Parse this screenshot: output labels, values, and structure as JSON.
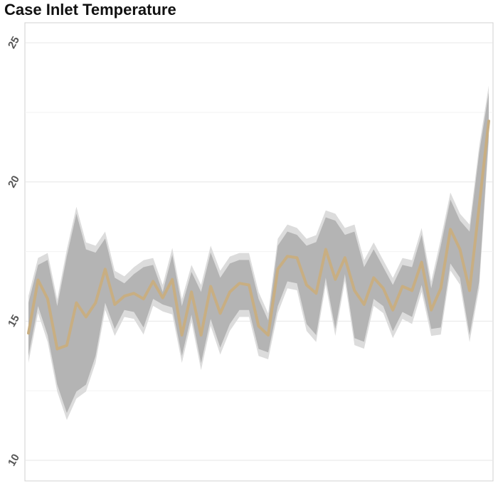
{
  "chart_data": {
    "type": "line",
    "title": "Case Inlet Temperature",
    "ylim": [
      9.26,
      25.72
    ],
    "yticks": [
      10,
      15,
      20,
      25
    ],
    "minor_yticks": [
      12.5,
      17.5,
      22.5
    ],
    "grid": true,
    "line_color": "#c8ae82",
    "bands": [
      {
        "color": "#dcdcdc",
        "upper": [
          15.91,
          17.27,
          17.45,
          15.79,
          17.58,
          19.11,
          17.83,
          17.71,
          18.22,
          16.81,
          16.61,
          16.94,
          17.19,
          17.27,
          16.3,
          17.63,
          15.79,
          17.02,
          16.3,
          17.71,
          16.81,
          17.32,
          17.45,
          17.45,
          16.05,
          15.28,
          17.96,
          18.47,
          18.35,
          17.96,
          18.09,
          18.98,
          18.86,
          18.35,
          18.47,
          17.19,
          17.83,
          17.19,
          16.55,
          17.27,
          17.19,
          18.35,
          16.43,
          17.96,
          19.62,
          18.86,
          18.47,
          21.29,
          23.46
        ],
        "lower": [
          13.5,
          15.29,
          14.25,
          12.47,
          11.45,
          12.22,
          12.47,
          13.5,
          15.41,
          14.47,
          15.15,
          15.08,
          14.52,
          15.55,
          15.35,
          15.24,
          13.5,
          14.98,
          13.24,
          14.83,
          13.8,
          14.65,
          15.15,
          15.15,
          13.75,
          13.63,
          15.29,
          16.18,
          16.11,
          14.65,
          14.25,
          16.31,
          14.47,
          16.44,
          14.14,
          14.01,
          15.55,
          15.29,
          14.39,
          15.08,
          14.9,
          16.05,
          14.47,
          14.52,
          16.82,
          16.31,
          14.25,
          16.18,
          21.43
        ]
      },
      {
        "color": "#b4b4b4",
        "upper": [
          15.66,
          17.02,
          17.2,
          15.54,
          17.33,
          18.86,
          17.58,
          17.46,
          17.97,
          16.56,
          16.36,
          16.69,
          16.94,
          17.02,
          16.05,
          17.38,
          15.54,
          16.77,
          16.05,
          17.46,
          16.56,
          17.07,
          17.2,
          17.2,
          15.8,
          15.03,
          17.71,
          18.22,
          18.1,
          17.71,
          17.84,
          18.73,
          18.61,
          18.1,
          18.22,
          16.94,
          17.58,
          16.94,
          16.3,
          17.02,
          16.94,
          18.1,
          16.18,
          17.71,
          19.37,
          18.61,
          18.22,
          21.04,
          23.21
        ],
        "lower": [
          13.75,
          15.54,
          14.5,
          12.72,
          11.7,
          12.47,
          12.72,
          13.75,
          15.66,
          14.72,
          15.4,
          15.33,
          14.77,
          15.8,
          15.6,
          15.49,
          13.75,
          15.23,
          13.49,
          15.08,
          14.05,
          14.9,
          15.4,
          15.4,
          14.0,
          13.88,
          15.54,
          16.43,
          16.36,
          14.9,
          14.5,
          16.56,
          14.72,
          16.69,
          14.39,
          14.26,
          15.8,
          15.54,
          14.64,
          15.33,
          15.15,
          16.3,
          14.72,
          14.77,
          17.07,
          16.56,
          14.5,
          16.43,
          21.68
        ]
      }
    ],
    "values": [
      14.57,
      16.48,
      15.8,
      14.0,
      14.13,
      15.66,
      15.15,
      15.66,
      16.87,
      15.6,
      15.9,
      16.0,
      15.8,
      16.43,
      15.84,
      16.5,
      14.5,
      16.05,
      14.5,
      16.25,
      15.28,
      16.05,
      16.36,
      16.3,
      14.82,
      14.5,
      16.87,
      17.33,
      17.28,
      16.3,
      16.0,
      17.58,
      16.5,
      17.28,
      16.1,
      15.6,
      16.56,
      16.18,
      15.4,
      16.25,
      16.1,
      17.12,
      15.4,
      16.18,
      18.3,
      17.58,
      16.1,
      19.12,
      22.19
    ]
  }
}
